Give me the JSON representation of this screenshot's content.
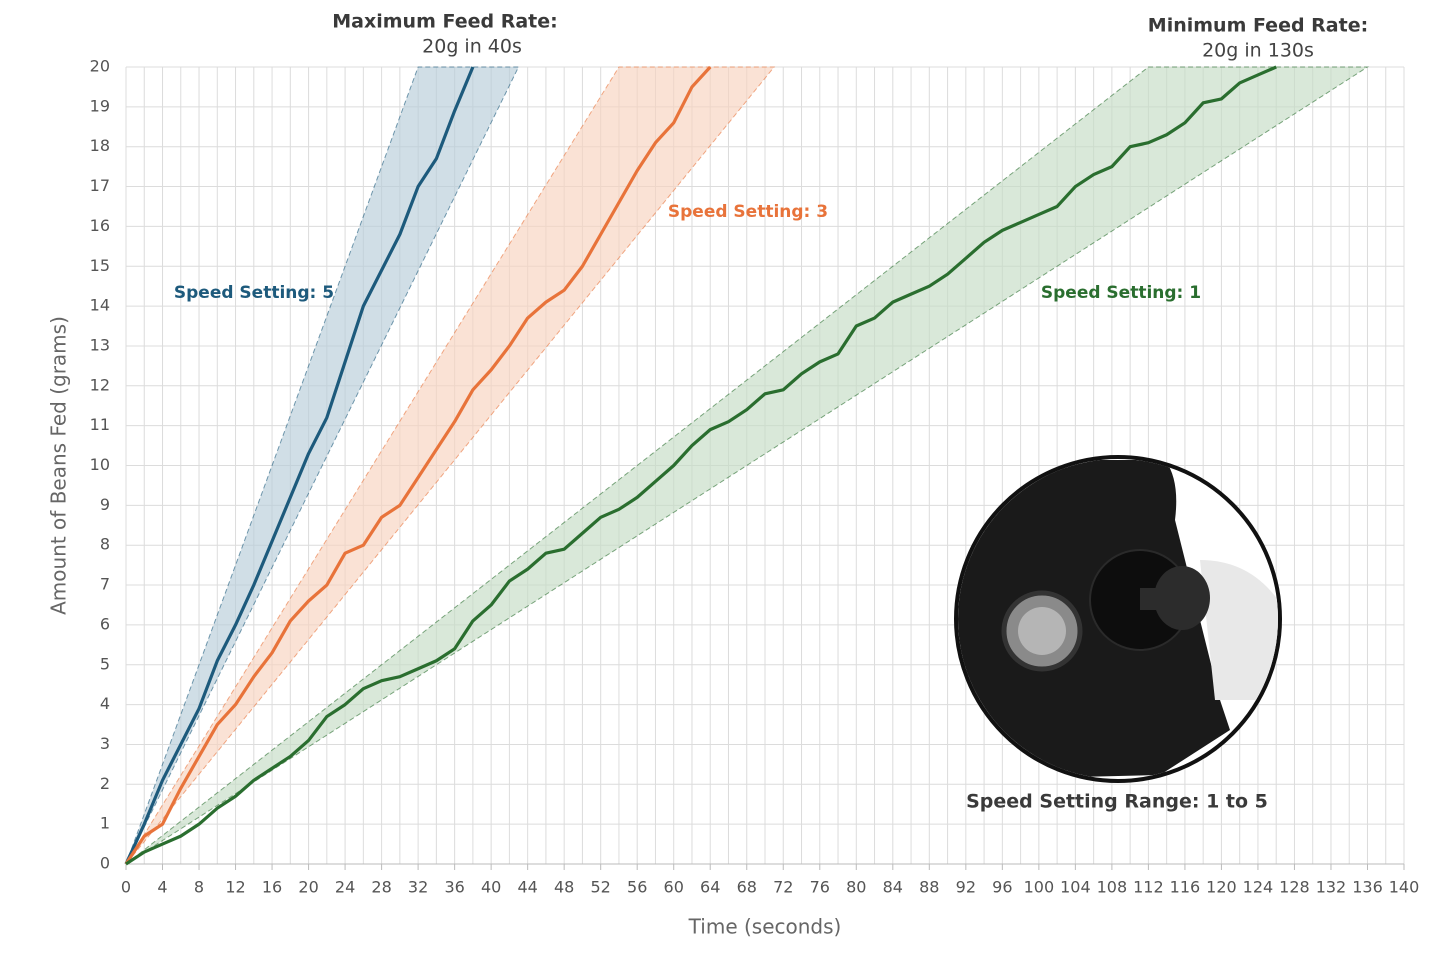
{
  "chart_data": {
    "type": "line",
    "x_label": "Time (seconds)",
    "y_label": "Amount of Beans Fed (grams)",
    "xlim": [
      0,
      140
    ],
    "xticks": [
      0,
      4,
      8,
      12,
      16,
      20,
      24,
      28,
      32,
      36,
      40,
      44,
      48,
      52,
      56,
      60,
      64,
      68,
      72,
      76,
      80,
      84,
      88,
      92,
      96,
      100,
      104,
      108,
      112,
      116,
      120,
      124,
      128,
      132,
      136,
      140
    ],
    "x_minor_grid": [
      2,
      6,
      10,
      14,
      18,
      22,
      26,
      30,
      34,
      38,
      42,
      46,
      50,
      54,
      58,
      62,
      66,
      70,
      74,
      78,
      82,
      86,
      90,
      94,
      98,
      102,
      106,
      110,
      114,
      118,
      122,
      126,
      130,
      134,
      138
    ],
    "ylim": [
      0,
      20
    ],
    "yticks": [
      0,
      1,
      2,
      3,
      4,
      5,
      6,
      7,
      8,
      9,
      10,
      11,
      12,
      13,
      14,
      15,
      16,
      17,
      18,
      19,
      20
    ],
    "grid": true,
    "annotations": {
      "max_title": "Maximum Feed Rate:",
      "max_text": "20g in 40s",
      "min_title": "Minimum Feed Rate:",
      "min_text": "20g in 130s",
      "range": "Speed Setting Range: 1 to 5"
    },
    "series": [
      {
        "name": "Speed Setting: 5",
        "color": "#1d5a7c",
        "band_color": "#b7ccd8",
        "x": [
          0,
          2,
          4,
          6,
          8,
          10,
          12,
          14,
          16,
          18,
          20,
          22,
          24,
          26,
          28,
          30,
          32,
          34,
          36,
          38
        ],
        "values": [
          0,
          1,
          2.1,
          3,
          3.9,
          5.1,
          6,
          7,
          8.1,
          9.2,
          10.3,
          11.2,
          12.6,
          14,
          14.9,
          15.8,
          17,
          17.7,
          18.9,
          20
        ],
        "band_x": [
          0,
          32,
          43
        ],
        "band_y": [
          0,
          20,
          20
        ]
      },
      {
        "name": "Speed Setting: 3",
        "color": "#e8733a",
        "band_color": "#f8d3bf",
        "x": [
          0,
          2,
          4,
          6,
          8,
          10,
          12,
          14,
          16,
          18,
          20,
          22,
          24,
          26,
          28,
          30,
          32,
          34,
          36,
          38,
          40,
          42,
          44,
          46,
          48,
          50,
          52,
          54,
          56,
          58,
          60,
          62,
          64
        ],
        "values": [
          0,
          0.7,
          1,
          1.9,
          2.7,
          3.5,
          4,
          4.7,
          5.3,
          6.1,
          6.6,
          7,
          7.8,
          8,
          8.7,
          9,
          9.7,
          10.4,
          11.1,
          11.9,
          12.4,
          13,
          13.7,
          14.1,
          14.4,
          15,
          15.8,
          16.6,
          17.4,
          18.1,
          18.6,
          19.5,
          20
        ],
        "band_x": [
          0,
          54,
          71
        ],
        "band_y": [
          0,
          20,
          20
        ]
      },
      {
        "name": "Speed Setting: 1",
        "color": "#2a6e2f",
        "band_color": "#c4dcc4",
        "x": [
          0,
          2,
          4,
          6,
          8,
          10,
          12,
          14,
          16,
          18,
          20,
          22,
          24,
          26,
          28,
          30,
          32,
          34,
          36,
          38,
          40,
          42,
          44,
          46,
          48,
          50,
          52,
          54,
          56,
          58,
          60,
          62,
          64,
          66,
          68,
          70,
          72,
          74,
          76,
          78,
          80,
          82,
          84,
          86,
          88,
          90,
          92,
          94,
          96,
          98,
          100,
          102,
          104,
          106,
          108,
          110,
          112,
          114,
          116,
          118,
          120,
          122,
          124,
          126
        ],
        "values": [
          0,
          0.3,
          0.5,
          0.7,
          1,
          1.4,
          1.7,
          2.1,
          2.4,
          2.7,
          3.1,
          3.7,
          4,
          4.4,
          4.6,
          4.7,
          4.9,
          5.1,
          5.4,
          6.1,
          6.5,
          7.1,
          7.4,
          7.8,
          7.9,
          8.3,
          8.7,
          8.9,
          9.2,
          9.6,
          10,
          10.5,
          10.9,
          11.1,
          11.4,
          11.8,
          11.9,
          12.3,
          12.6,
          12.8,
          13.5,
          13.7,
          14.1,
          14.3,
          14.5,
          14.8,
          15.2,
          15.6,
          15.9,
          16.1,
          16.3,
          16.5,
          17,
          17.3,
          17.5,
          18,
          18.1,
          18.3,
          18.6,
          19.1,
          19.2,
          19.6,
          19.8,
          20
        ],
        "band_x": [
          0,
          112,
          136
        ],
        "band_y": [
          0,
          20,
          20
        ]
      }
    ]
  }
}
